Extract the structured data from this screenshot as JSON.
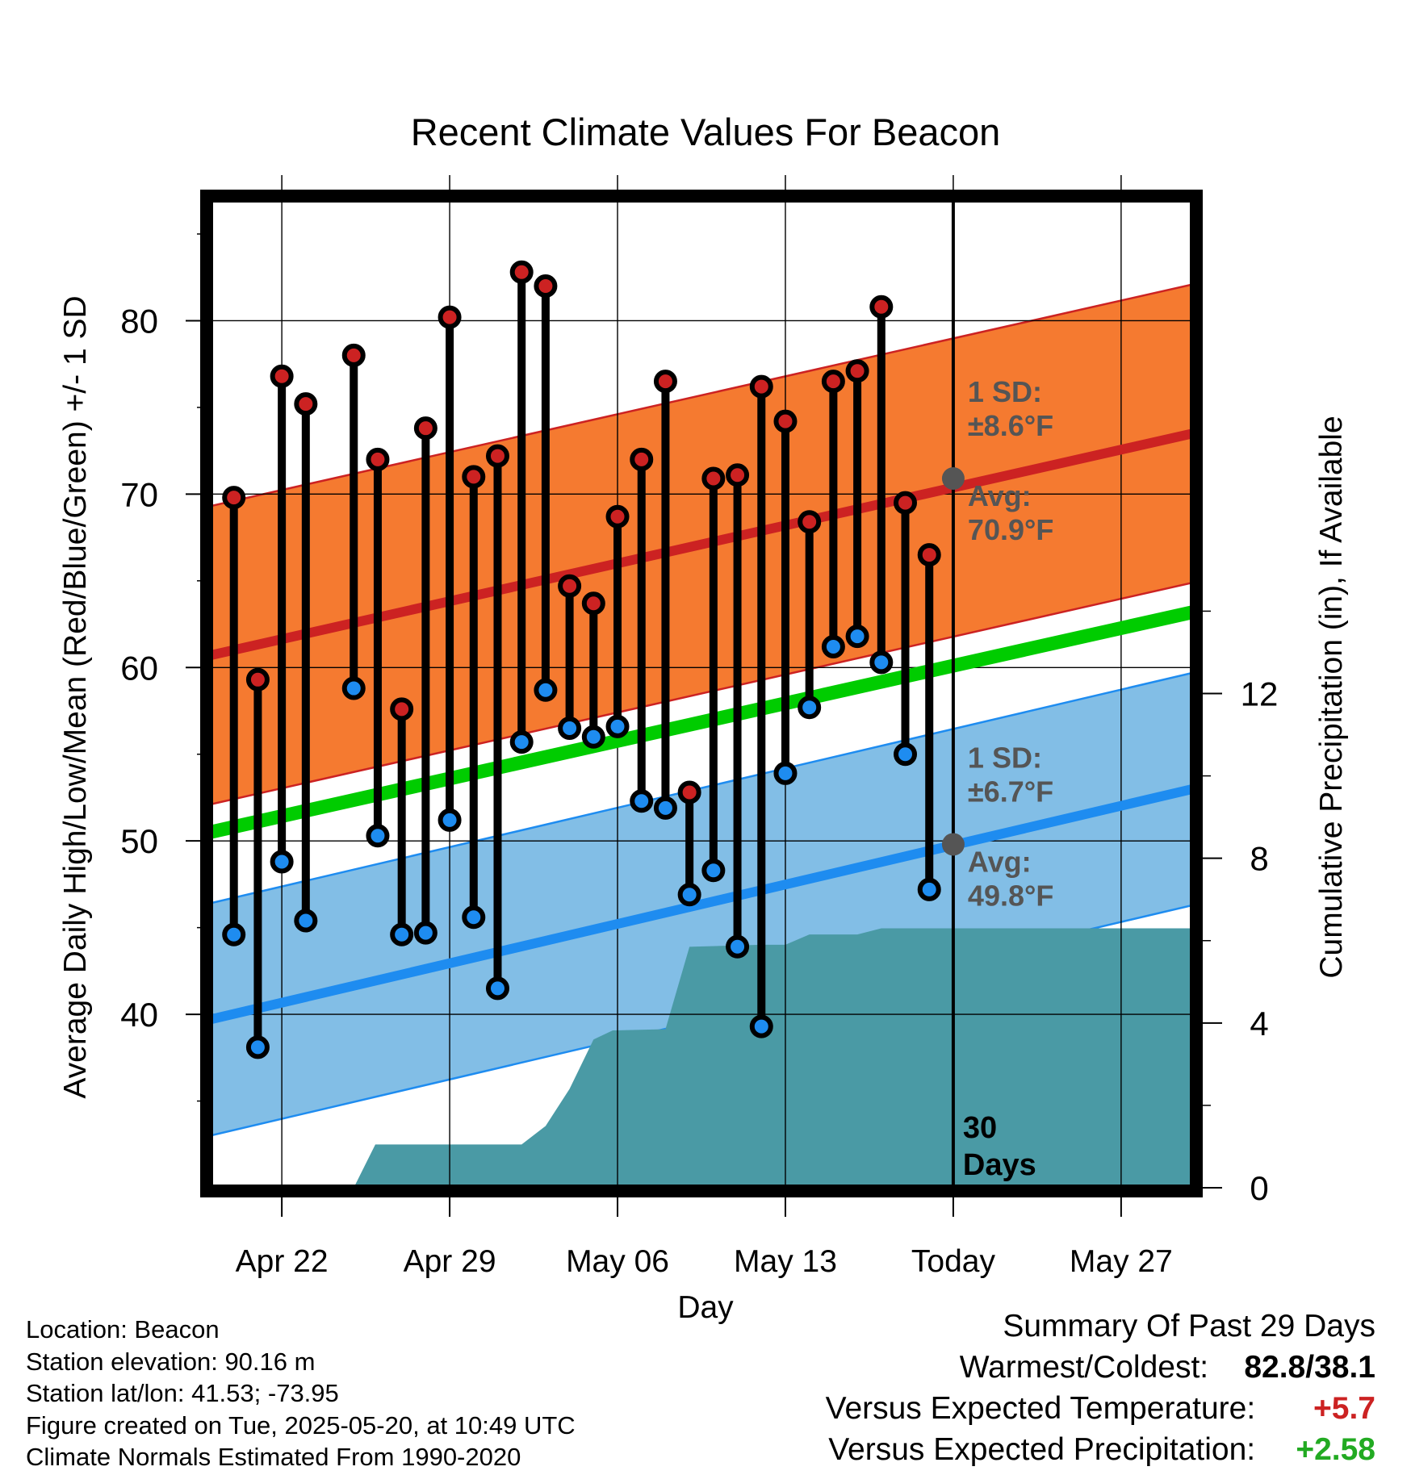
{
  "chart_data": {
    "type": "line",
    "title": "Recent Climate Values For Beacon",
    "xlabel": "Day",
    "ylabel": "Average Daily High/Low/Mean (Red/Blue/Green) +/- 1 SD",
    "y2label": "Cumulative Precipitation (in), If Available",
    "xlim": [
      "2025-04-19",
      "2025-05-30"
    ],
    "ylim": [
      30,
      87
    ],
    "y2lim": [
      0,
      24
    ],
    "x_tick_labels": [
      {
        "date": "2025-04-22",
        "label": "Apr 22"
      },
      {
        "date": "2025-04-29",
        "label": "Apr 29"
      },
      {
        "date": "2025-05-06",
        "label": "May 06"
      },
      {
        "date": "2025-05-13",
        "label": "May 13"
      },
      {
        "date": "2025-05-20",
        "label": "Today"
      },
      {
        "date": "2025-05-27",
        "label": "May 27"
      }
    ],
    "y_ticks": [
      40,
      50,
      60,
      70,
      80
    ],
    "y2_ticks": [
      0,
      4,
      8,
      12
    ],
    "grid": true,
    "today": "2025-05-20",
    "today_label": "30\nDays",
    "colors": {
      "high": "#cc2222",
      "high_band": "#f57a30",
      "low": "#1e8cf0",
      "low_band": "#82bee6",
      "mean": "#00cc00",
      "precip": "#4a9aa5",
      "avg_marker": "#555555"
    },
    "normal_high": {
      "start": 60.7,
      "end": 73.5,
      "sd_label": "1 SD:\n±8.6°F",
      "avg_label": "Avg:\n70.9°F",
      "today_value": 70.9,
      "sd": 8.6
    },
    "normal_low": {
      "start": 39.7,
      "end": 53.0,
      "sd_label": "1 SD:\n±6.7°F",
      "avg_label": "Avg:\n49.8°F",
      "today_value": 49.8,
      "sd": 6.7
    },
    "normal_mean": {
      "start": 50.5,
      "end": 63.2
    },
    "series": [
      {
        "name": "High",
        "values": [
          {
            "date": "2025-04-20",
            "value": 69.8
          },
          {
            "date": "2025-04-21",
            "value": 59.3
          },
          {
            "date": "2025-04-22",
            "value": 76.8
          },
          {
            "date": "2025-04-23",
            "value": 75.2
          },
          {
            "date": "2025-04-25",
            "value": 78.0
          },
          {
            "date": "2025-04-26",
            "value": 72.0
          },
          {
            "date": "2025-04-27",
            "value": 57.6
          },
          {
            "date": "2025-04-28",
            "value": 73.8
          },
          {
            "date": "2025-04-29",
            "value": 80.2
          },
          {
            "date": "2025-04-30",
            "value": 71.0
          },
          {
            "date": "2025-05-01",
            "value": 72.2
          },
          {
            "date": "2025-05-02",
            "value": 82.8
          },
          {
            "date": "2025-05-03",
            "value": 82.0
          },
          {
            "date": "2025-05-04",
            "value": 64.7
          },
          {
            "date": "2025-05-05",
            "value": 63.7
          },
          {
            "date": "2025-05-06",
            "value": 68.7
          },
          {
            "date": "2025-05-07",
            "value": 72.0
          },
          {
            "date": "2025-05-08",
            "value": 76.5
          },
          {
            "date": "2025-05-09",
            "value": 52.8
          },
          {
            "date": "2025-05-10",
            "value": 70.9
          },
          {
            "date": "2025-05-11",
            "value": 71.1
          },
          {
            "date": "2025-05-12",
            "value": 76.2
          },
          {
            "date": "2025-05-13",
            "value": 74.2
          },
          {
            "date": "2025-05-14",
            "value": 68.4
          },
          {
            "date": "2025-05-15",
            "value": 76.5
          },
          {
            "date": "2025-05-16",
            "value": 77.1
          },
          {
            "date": "2025-05-17",
            "value": 80.8
          },
          {
            "date": "2025-05-18",
            "value": 69.5
          },
          {
            "date": "2025-05-19",
            "value": 66.5
          }
        ]
      },
      {
        "name": "Low",
        "values": [
          {
            "date": "2025-04-20",
            "value": 44.6
          },
          {
            "date": "2025-04-21",
            "value": 38.1
          },
          {
            "date": "2025-04-22",
            "value": 48.8
          },
          {
            "date": "2025-04-23",
            "value": 45.4
          },
          {
            "date": "2025-04-25",
            "value": 58.8
          },
          {
            "date": "2025-04-26",
            "value": 50.3
          },
          {
            "date": "2025-04-27",
            "value": 44.6
          },
          {
            "date": "2025-04-28",
            "value": 44.7
          },
          {
            "date": "2025-04-29",
            "value": 51.2
          },
          {
            "date": "2025-04-30",
            "value": 45.6
          },
          {
            "date": "2025-05-01",
            "value": 41.5
          },
          {
            "date": "2025-05-02",
            "value": 55.7
          },
          {
            "date": "2025-05-03",
            "value": 58.7
          },
          {
            "date": "2025-05-04",
            "value": 56.5
          },
          {
            "date": "2025-05-05",
            "value": 56.0
          },
          {
            "date": "2025-05-06",
            "value": 56.6
          },
          {
            "date": "2025-05-07",
            "value": 52.3
          },
          {
            "date": "2025-05-08",
            "value": 51.9
          },
          {
            "date": "2025-05-09",
            "value": 46.9
          },
          {
            "date": "2025-05-10",
            "value": 48.3
          },
          {
            "date": "2025-05-11",
            "value": 43.9
          },
          {
            "date": "2025-05-12",
            "value": 39.3
          },
          {
            "date": "2025-05-13",
            "value": 53.9
          },
          {
            "date": "2025-05-14",
            "value": 57.7
          },
          {
            "date": "2025-05-15",
            "value": 61.2
          },
          {
            "date": "2025-05-16",
            "value": 61.8
          },
          {
            "date": "2025-05-17",
            "value": 60.3
          },
          {
            "date": "2025-05-18",
            "value": 55.0
          },
          {
            "date": "2025-05-19",
            "value": 47.2
          }
        ]
      },
      {
        "name": "Cumulative Precipitation",
        "axis": "y2",
        "values": [
          {
            "date": "2025-04-25",
            "value": 0.0
          },
          {
            "date": "2025-04-25.9",
            "value": 1.05
          },
          {
            "date": "2025-05-02",
            "value": 1.05
          },
          {
            "date": "2025-05-03",
            "value": 1.5
          },
          {
            "date": "2025-05-04",
            "value": 2.4
          },
          {
            "date": "2025-05-05",
            "value": 3.6
          },
          {
            "date": "2025-05-05.8",
            "value": 3.82
          },
          {
            "date": "2025-05-08",
            "value": 3.85
          },
          {
            "date": "2025-05-09",
            "value": 5.85
          },
          {
            "date": "2025-05-12",
            "value": 5.9
          },
          {
            "date": "2025-05-13",
            "value": 5.9
          },
          {
            "date": "2025-05-14",
            "value": 6.15
          },
          {
            "date": "2025-05-16",
            "value": 6.15
          },
          {
            "date": "2025-05-17",
            "value": 6.3
          },
          {
            "date": "2025-05-30",
            "value": 6.3
          }
        ]
      }
    ]
  },
  "footer": {
    "lines": [
      "Location: Beacon",
      "Station elevation: 90.16 m",
      "Station lat/lon: 41.53; -73.95",
      "Figure created on Tue, 2025-05-20, at 10:49 UTC",
      "Climate Normals Estimated From 1990-2020"
    ]
  },
  "summary": {
    "heading": "Summary Of Past 29 Days",
    "warmest_coldest_label": "Warmest/Coldest:",
    "warmest_coldest_value": "82.8/38.1",
    "temp_label": "Versus Expected Temperature:",
    "temp_value": "+5.7",
    "precip_label": "Versus Expected Precipitation:",
    "precip_value": "+2.58",
    "temp_color": "#cc2222",
    "precip_color": "#22aa22"
  }
}
